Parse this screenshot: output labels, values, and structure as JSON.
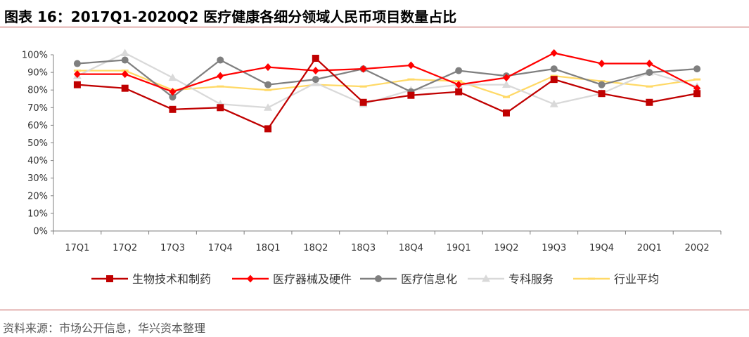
{
  "title": "图表 16：2017Q1-2020Q2 医疗健康各细分领域人民币项目数量占比",
  "source": "资料来源：市场公开信息，华兴资本整理",
  "chart_data": {
    "type": "line",
    "title": "图表 16：2017Q1-2020Q2 医疗健康各细分领域人民币项目数量占比",
    "xlabel": "",
    "ylabel": "",
    "ylim": [
      0,
      100
    ],
    "yticks": [
      "0%",
      "10%",
      "20%",
      "30%",
      "40%",
      "50%",
      "60%",
      "70%",
      "80%",
      "90%",
      "100%"
    ],
    "grid": false,
    "legend": "bottom",
    "categories": [
      "17Q1",
      "17Q2",
      "17Q3",
      "17Q4",
      "18Q1",
      "18Q2",
      "18Q3",
      "18Q4",
      "19Q1",
      "19Q2",
      "19Q3",
      "19Q4",
      "20Q1",
      "20Q2"
    ],
    "series": [
      {
        "name": "生物技术和制药",
        "color": "#c00000",
        "marker": "square",
        "values": [
          83,
          81,
          69,
          70,
          58,
          98,
          73,
          77,
          79,
          67,
          86,
          78,
          73,
          78
        ]
      },
      {
        "name": "医疗器械及硬件",
        "color": "#ff0000",
        "marker": "diamond",
        "values": [
          89,
          89,
          79,
          88,
          93,
          91,
          92,
          94,
          83,
          87,
          101,
          95,
          95,
          81
        ]
      },
      {
        "name": "医疗信息化",
        "color": "#7f7f7f",
        "marker": "circle",
        "values": [
          95,
          97,
          76,
          97,
          83,
          86,
          92,
          79,
          91,
          88,
          92,
          83,
          90,
          92
        ]
      },
      {
        "name": "专科服务",
        "color": "#d9d9d9",
        "marker": "triangle",
        "values": [
          88,
          101,
          87,
          72,
          70,
          84,
          72,
          80,
          83,
          83,
          72,
          78,
          90,
          82
        ]
      },
      {
        "name": "行业平均",
        "color": "#ffd966",
        "marker": "dash",
        "values": [
          91,
          91,
          80,
          82,
          80,
          83,
          82,
          86,
          85,
          76,
          88,
          85,
          82,
          86
        ]
      }
    ]
  }
}
